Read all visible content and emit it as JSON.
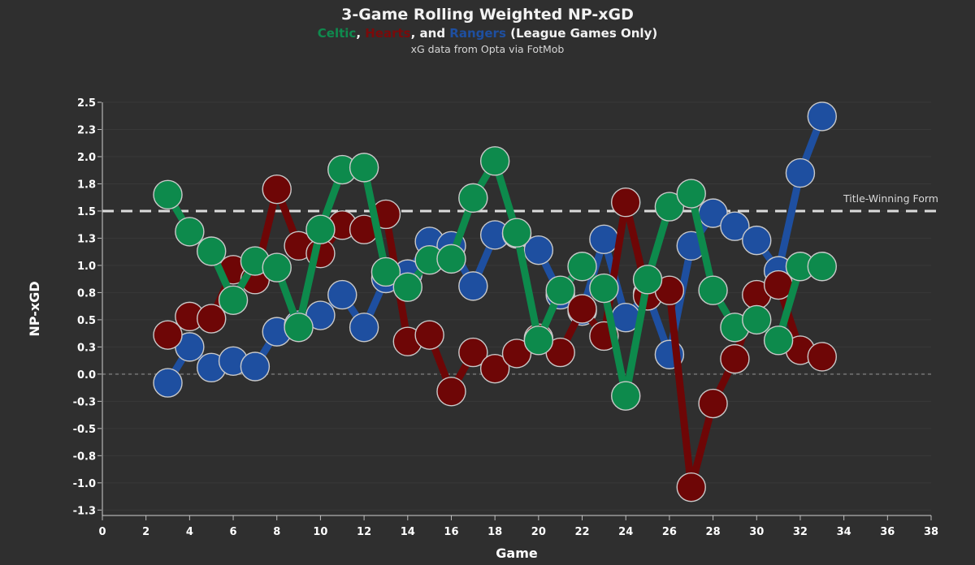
{
  "header": {
    "title": "3-Game Rolling Weighted NP-xGD",
    "subtitle_celtic": "Celtic",
    "subtitle_sep1": ", ",
    "subtitle_hearts": "Hearts",
    "subtitle_sep2": ", and ",
    "subtitle_rangers": "Rangers",
    "subtitle_tail": " (League Games Only)",
    "source": "xG data from Opta via FotMob"
  },
  "chart_data": {
    "type": "line",
    "title": "3-Game Rolling Weighted NP-xGD",
    "xlabel": "Game",
    "ylabel": "NP-xGD",
    "xlim": [
      0,
      38
    ],
    "ylim": [
      -1.3,
      2.5
    ],
    "xticks": [
      "0",
      "2",
      "4",
      "6",
      "8",
      "10",
      "12",
      "14",
      "16",
      "18",
      "20",
      "22",
      "24",
      "26",
      "28",
      "30",
      "32",
      "34",
      "36",
      "38"
    ],
    "yticks": [
      {
        "value": 2.5,
        "label": "2.5"
      },
      {
        "value": 2.25,
        "label": "2.3"
      },
      {
        "value": 2.0,
        "label": "2.0"
      },
      {
        "value": 1.75,
        "label": "1.8"
      },
      {
        "value": 1.5,
        "label": "1.5"
      },
      {
        "value": 1.25,
        "label": "1.3"
      },
      {
        "value": 1.0,
        "label": "1.0"
      },
      {
        "value": 0.75,
        "label": "0.8"
      },
      {
        "value": 0.5,
        "label": "0.5"
      },
      {
        "value": 0.25,
        "label": "0.3"
      },
      {
        "value": 0.0,
        "label": "0.0"
      },
      {
        "value": -0.25,
        "label": "-0.3"
      },
      {
        "value": -0.5,
        "label": "-0.5"
      },
      {
        "value": -0.75,
        "label": "-0.8"
      },
      {
        "value": -1.0,
        "label": "-1.0"
      },
      {
        "value": -1.25,
        "label": "-1.3"
      }
    ],
    "reference_line": {
      "value": 1.5,
      "label": "Title-Winning Form"
    },
    "zero_line": 0.0,
    "x": [
      3,
      4,
      5,
      6,
      7,
      8,
      9,
      10,
      11,
      12,
      13,
      14,
      15,
      16,
      17,
      18,
      19,
      20,
      21,
      22,
      23,
      24,
      25,
      26,
      27,
      28,
      29,
      30,
      31,
      32,
      33
    ],
    "series": [
      {
        "name": "Rangers",
        "color": "#1e4fa0",
        "values": [
          -0.08,
          0.25,
          0.06,
          0.12,
          0.07,
          0.39,
          0.45,
          0.54,
          0.73,
          0.43,
          0.88,
          0.92,
          1.22,
          1.18,
          0.81,
          1.28,
          1.29,
          1.14,
          0.73,
          0.58,
          1.24,
          0.52,
          0.74,
          0.18,
          1.18,
          1.48,
          1.36,
          1.23,
          0.95,
          1.85,
          2.37
        ]
      },
      {
        "name": "Hearts",
        "color": "#6e0606",
        "values": [
          0.36,
          0.53,
          0.51,
          0.96,
          0.87,
          1.7,
          1.18,
          1.11,
          1.37,
          1.33,
          1.47,
          0.3,
          0.36,
          -0.16,
          0.2,
          0.05,
          0.19,
          0.33,
          0.2,
          0.6,
          0.35,
          1.58,
          0.72,
          0.77,
          -1.04,
          -0.27,
          0.14,
          0.73,
          0.82,
          0.22,
          0.16
        ]
      },
      {
        "name": "Celtic",
        "color": "#0d8a4c",
        "values": [
          1.65,
          1.31,
          1.13,
          0.68,
          1.04,
          0.98,
          0.43,
          1.33,
          1.88,
          1.9,
          0.94,
          0.8,
          1.05,
          1.06,
          1.62,
          1.96,
          1.3,
          0.31,
          0.77,
          0.99,
          0.79,
          -0.2,
          0.87,
          1.54,
          1.66,
          0.77,
          0.43,
          0.5,
          0.31,
          0.99,
          0.99
        ]
      }
    ]
  }
}
